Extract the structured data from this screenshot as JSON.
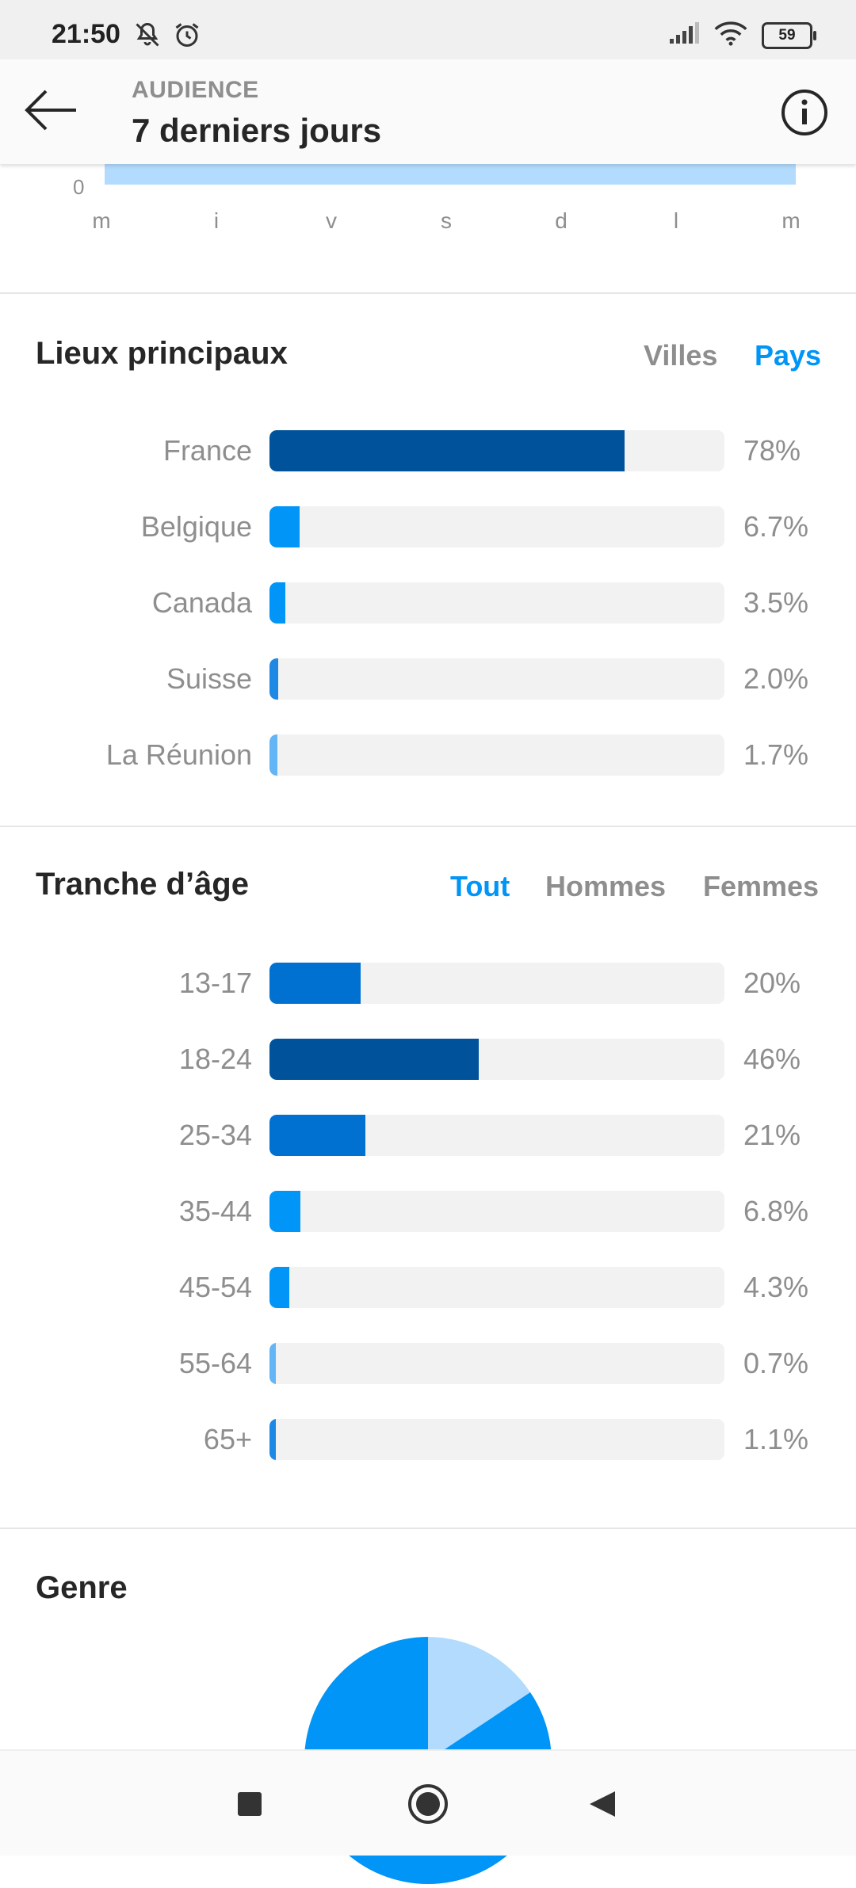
{
  "status_bar": {
    "time": "21:50",
    "icons_left": [
      "bell-off-icon",
      "alarm-icon"
    ],
    "icons_right": [
      "signal-icon",
      "wifi-icon"
    ],
    "battery": "59"
  },
  "header": {
    "subtitle": "AUDIENCE",
    "title": "7 derniers jours",
    "back_icon": "arrow-left-icon",
    "info_icon": "info-icon"
  },
  "activity_chart": {
    "zero_label": "0",
    "days": [
      "m",
      "i",
      "v",
      "s",
      "d",
      "l",
      "m"
    ]
  },
  "locations": {
    "title": "Lieux principaux",
    "tabs": [
      {
        "label": "Villes",
        "active": false
      },
      {
        "label": "Pays",
        "active": true
      }
    ]
  },
  "age": {
    "title": "Tranche d’âge",
    "tabs": [
      {
        "label": "Tout",
        "active": true
      },
      {
        "label": "Hommes",
        "active": false
      },
      {
        "label": "Femmes",
        "active": false
      }
    ]
  },
  "gender": {
    "title": "Genre"
  },
  "chart_data": [
    {
      "type": "bar",
      "orientation": "horizontal",
      "title": "Lieux principaux",
      "categories": [
        "France",
        "Belgique",
        "Canada",
        "Suisse",
        "La Réunion"
      ],
      "values": [
        78,
        6.7,
        3.5,
        2.0,
        1.7
      ],
      "value_labels": [
        "78%",
        "6.7%",
        "3.5%",
        "2.0%",
        "1.7%"
      ],
      "colors": [
        "#00529b",
        "#0095f6",
        "#0095f6",
        "#1e88e5",
        "#64b5f6"
      ],
      "xlim": [
        0,
        100
      ]
    },
    {
      "type": "bar",
      "orientation": "horizontal",
      "title": "Tranche d’âge",
      "categories": [
        "13-17",
        "18-24",
        "25-34",
        "35-44",
        "45-54",
        "55-64",
        "65+"
      ],
      "values": [
        20,
        46,
        21,
        6.8,
        4.3,
        0.7,
        1.1
      ],
      "value_labels": [
        "20%",
        "46%",
        "21%",
        "6.8%",
        "4.3%",
        "0.7%",
        "1.1%"
      ],
      "colors": [
        "#0070d1",
        "#00529b",
        "#0070d1",
        "#0095f6",
        "#0095f6",
        "#64b5f6",
        "#1e88e5"
      ],
      "xlim": [
        0,
        100
      ]
    },
    {
      "type": "pie",
      "title": "Genre",
      "colors": [
        "#0095f6",
        "#b3dbfe",
        "#0095f6"
      ]
    }
  ],
  "nav_bar": {
    "buttons": [
      "recents-icon",
      "home-icon",
      "back-triangle-icon"
    ]
  }
}
